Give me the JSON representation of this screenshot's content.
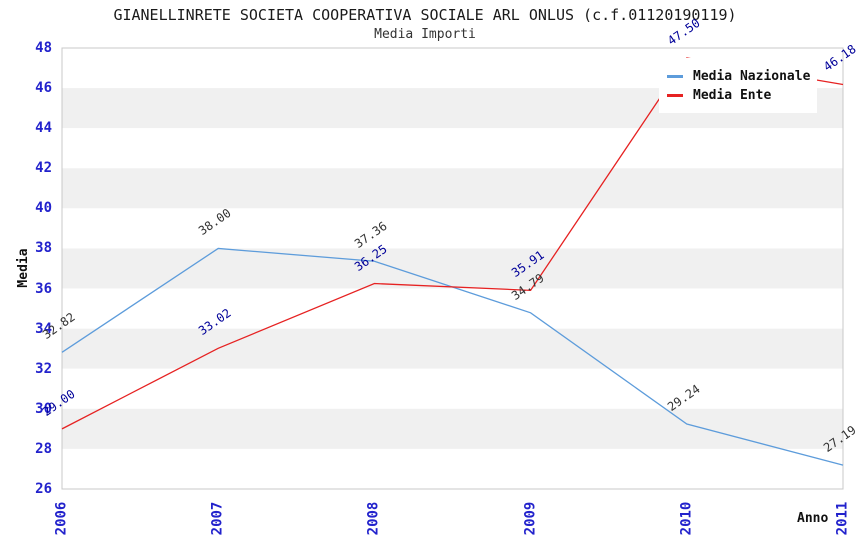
{
  "chart_data": {
    "type": "line",
    "title": "GIANELLINRETE SOCIETA COOPERATIVA SOCIALE ARL ONLUS (c.f.01120190119)",
    "subtitle": "Media Importi",
    "xlabel": "Anno",
    "ylabel": "Media",
    "x": [
      "2006",
      "2007",
      "2008",
      "2009",
      "2010",
      "2011"
    ],
    "series": [
      {
        "name": "Media Nazionale",
        "color": "#5D9CDB",
        "label_color": "#333333",
        "values": [
          32.82,
          38.0,
          37.36,
          34.79,
          29.24,
          27.19
        ]
      },
      {
        "name": "Media Ente",
        "color": "#E62222",
        "label_color": "#000099",
        "values": [
          29.0,
          33.02,
          36.25,
          35.91,
          47.5,
          46.18
        ]
      }
    ],
    "ylim": [
      26,
      48
    ],
    "y_ticks": [
      26,
      28,
      30,
      32,
      34,
      36,
      38,
      40,
      42,
      44,
      46,
      48
    ],
    "grid": "alternating-horizontal-bands",
    "band_colors": [
      "#ffffff",
      "#f0f0f0"
    ],
    "plot_border_color": "#c8c8c8",
    "axis_tick_color": "#2222cc",
    "legend_position": "top-right"
  }
}
